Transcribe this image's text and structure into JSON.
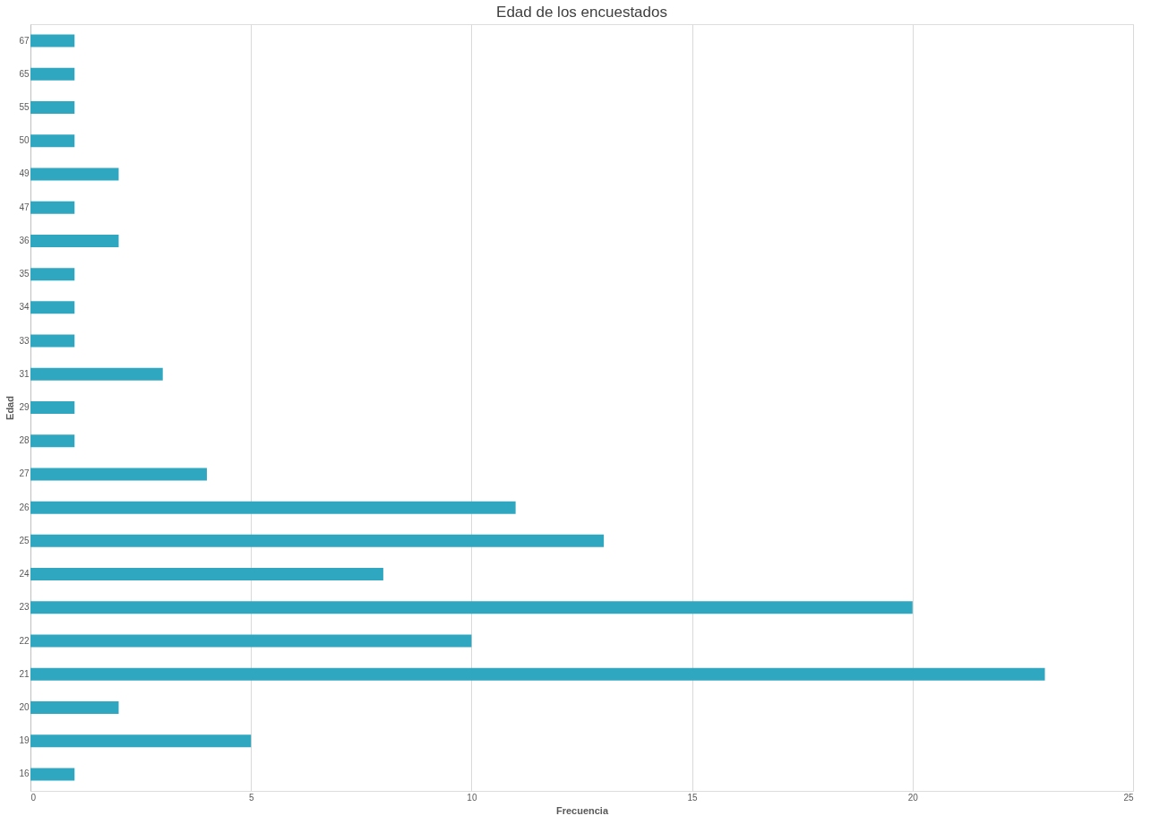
{
  "chart_data": {
    "type": "bar",
    "orientation": "horizontal",
    "title": "Edad de los encuestados",
    "xlabel": "Frecuencia",
    "ylabel": "Edad",
    "categories": [
      "67",
      "65",
      "55",
      "50",
      "49",
      "47",
      "36",
      "35",
      "34",
      "33",
      "31",
      "29",
      "28",
      "27",
      "26",
      "25",
      "24",
      "23",
      "22",
      "21",
      "20",
      "19",
      "16"
    ],
    "values": [
      1,
      1,
      1,
      1,
      2,
      1,
      2,
      1,
      1,
      1,
      3,
      1,
      1,
      4,
      11,
      13,
      8,
      20,
      10,
      23,
      2,
      5,
      1
    ],
    "color": "#2fa7c0",
    "xlim": [
      0,
      25
    ],
    "xticks": [
      0,
      5,
      10,
      15,
      20,
      25
    ],
    "grid": "x"
  }
}
